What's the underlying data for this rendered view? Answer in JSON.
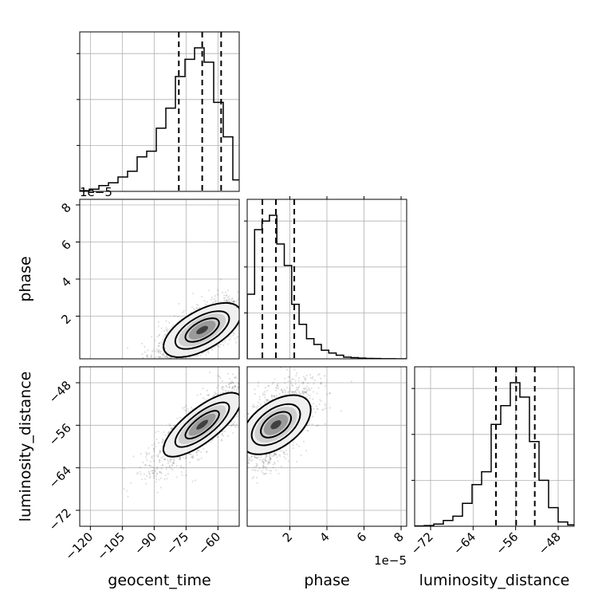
{
  "chart_data": {
    "type": "corner",
    "grid": true,
    "parameters": [
      {
        "name": "geocent_time",
        "range": [
          -125,
          -50
        ],
        "ticks": [
          -120,
          -105,
          -90,
          -75,
          -60
        ],
        "tick_labels": [
          "−120",
          "−105",
          "−90",
          "−75",
          "−60"
        ],
        "quantiles": [
          -78.4,
          -67.4,
          -58.5
        ],
        "histogram": {
          "edges": [
            -125,
            -120.5,
            -116,
            -111.5,
            -107,
            -102.5,
            -98,
            -93.5,
            -89,
            -84.5,
            -80,
            -75.5,
            -71,
            -66.5,
            -62,
            -57.5,
            -53,
            -50
          ],
          "counts": [
            0.005,
            0.015,
            0.04,
            0.06,
            0.1,
            0.14,
            0.24,
            0.28,
            0.44,
            0.58,
            0.8,
            0.92,
            1.0,
            0.9,
            0.62,
            0.38,
            0.08
          ]
        }
      },
      {
        "name": "phase",
        "range": [
          -0.3,
          8.3
        ],
        "offset_label": "1e−5",
        "ticks": [
          2,
          4,
          6,
          8
        ],
        "tick_labels": [
          "2",
          "4",
          "6",
          "8"
        ],
        "quantiles": [
          0.52,
          1.25,
          2.24
        ],
        "histogram": {
          "edges": [
            -0.3,
            0.1,
            0.5,
            0.9,
            1.3,
            1.7,
            2.1,
            2.5,
            2.9,
            3.3,
            3.7,
            4.1,
            4.5,
            4.9,
            5.3,
            5.7,
            6.1,
            6.5,
            6.9,
            7.3,
            7.7,
            8.1,
            8.3
          ],
          "counts": [
            0.45,
            0.9,
            0.96,
            1.0,
            0.8,
            0.65,
            0.38,
            0.24,
            0.14,
            0.1,
            0.06,
            0.04,
            0.025,
            0.012,
            0.008,
            0.005,
            0.003,
            0.002,
            0.001,
            0.0005,
            0.0003,
            0.0001
          ]
        }
      },
      {
        "name": "luminosity_distance",
        "range": [
          -75,
          -45
        ],
        "ticks": [
          -72,
          -64,
          -56,
          -48
        ],
        "tick_labels": [
          "−72",
          "−64",
          "−56",
          "−48"
        ],
        "quantiles": [
          -59.7,
          -55.9,
          -52.4
        ],
        "histogram": {
          "edges": [
            -75,
            -73.2,
            -71.4,
            -69.6,
            -67.8,
            -66,
            -64.2,
            -62.4,
            -60.6,
            -58.8,
            -57,
            -55.2,
            -53.4,
            -51.6,
            -49.8,
            -48,
            -46.2,
            -45
          ],
          "counts": [
            0.002,
            0.005,
            0.015,
            0.04,
            0.07,
            0.16,
            0.29,
            0.38,
            0.71,
            0.84,
            1.0,
            0.9,
            0.59,
            0.32,
            0.13,
            0.03,
            0.01
          ]
        }
      }
    ],
    "contour_levels": [
      "39.3%",
      "86.5%"
    ],
    "correlations": {
      "phase_vs_geocent_time": 0.75,
      "luminosity_distance_vs_geocent_time": 0.85,
      "luminosity_distance_vs_phase": 0.6
    }
  }
}
